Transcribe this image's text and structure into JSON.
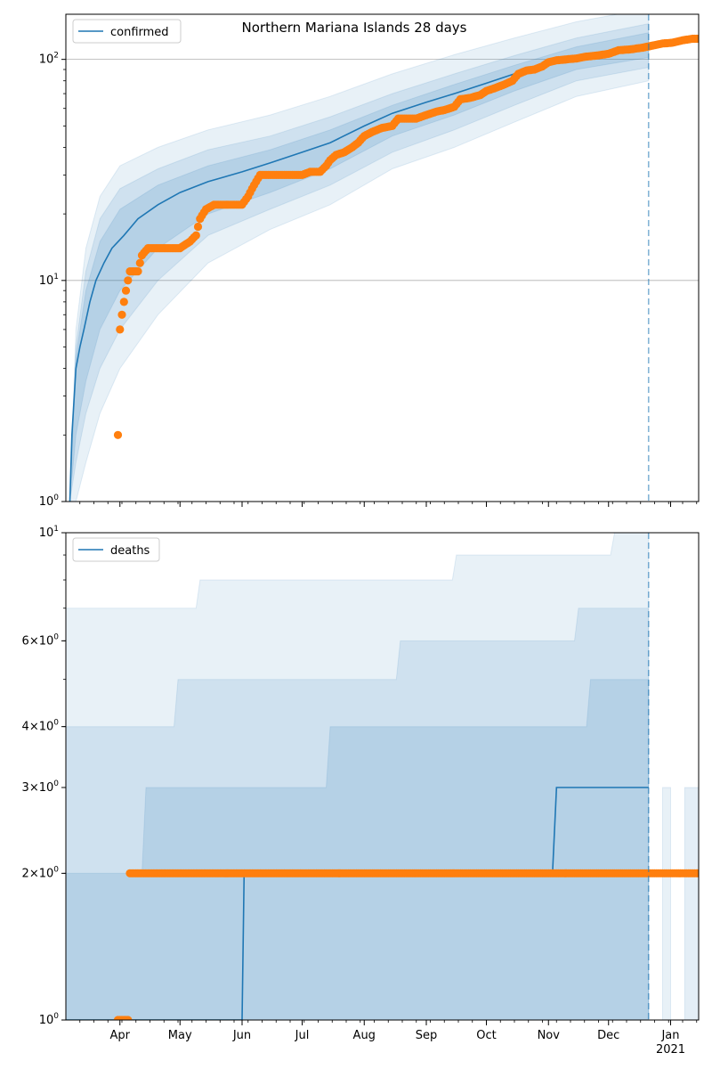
{
  "figure_title": "Northern Mariana Islands 28 days",
  "colors": {
    "model_line": "#1f77b4",
    "observed_points": "#ff7f0e",
    "band": "#1f77b4",
    "forecast_marker": "#1f77b4",
    "grid": "#b0b0b0"
  },
  "x_ticks": [
    {
      "label": "Apr",
      "date": "2020-04-01"
    },
    {
      "label": "May",
      "date": "2020-05-01"
    },
    {
      "label": "Jun",
      "date": "2020-06-01"
    },
    {
      "label": "Jul",
      "date": "2020-07-01"
    },
    {
      "label": "Aug",
      "date": "2020-08-01"
    },
    {
      "label": "Sep",
      "date": "2020-09-01"
    },
    {
      "label": "Oct",
      "date": "2020-10-01"
    },
    {
      "label": "Nov",
      "date": "2020-11-01"
    },
    {
      "label": "Dec",
      "date": "2020-12-01"
    },
    {
      "label": "Jan",
      "date": "2021-01-01"
    }
  ],
  "x_year_label": "2021",
  "chart_data": [
    {
      "type": "line",
      "scale": "log",
      "xlim": [
        "2020-03-05",
        "2021-01-15"
      ],
      "ylim": [
        1,
        160
      ],
      "y_ticks": [
        {
          "value": 1,
          "label": "10",
          "exp": "0"
        },
        {
          "value": 10,
          "label": "10",
          "exp": "1"
        },
        {
          "value": 100,
          "label": "10",
          "exp": "2"
        }
      ],
      "grid": true,
      "legend": {
        "position": "upper-left",
        "entries": [
          "confirmed"
        ]
      },
      "forecast_start": "2020-12-21",
      "series": [
        {
          "name": "confirmed",
          "kind": "model",
          "points": [
            [
              "2020-03-07",
              1
            ],
            [
              "2020-03-08",
              2
            ],
            [
              "2020-03-10",
              4
            ],
            [
              "2020-03-12",
              5
            ],
            [
              "2020-03-14",
              6
            ],
            [
              "2020-03-17",
              8
            ],
            [
              "2020-03-20",
              10
            ],
            [
              "2020-03-24",
              12
            ],
            [
              "2020-03-28",
              14
            ],
            [
              "2020-04-03",
              16
            ],
            [
              "2020-04-10",
              19
            ],
            [
              "2020-04-20",
              22
            ],
            [
              "2020-05-01",
              25
            ],
            [
              "2020-05-15",
              28
            ],
            [
              "2020-06-01",
              31
            ],
            [
              "2020-06-15",
              34
            ],
            [
              "2020-07-01",
              38
            ],
            [
              "2020-07-15",
              42
            ],
            [
              "2020-08-01",
              50
            ],
            [
              "2020-08-15",
              57
            ],
            [
              "2020-09-01",
              64
            ],
            [
              "2020-09-15",
              70
            ],
            [
              "2020-10-01",
              78
            ],
            [
              "2020-10-15",
              86
            ],
            [
              "2020-11-01",
              95
            ],
            [
              "2020-11-15",
              102
            ],
            [
              "2020-12-01",
              108
            ],
            [
              "2020-12-10",
              113
            ],
            [
              "2020-12-21",
              118
            ]
          ]
        },
        {
          "name": "observed",
          "kind": "points",
          "points": [
            [
              "2020-03-31",
              2
            ],
            [
              "2020-04-01",
              6
            ],
            [
              "2020-04-03",
              8
            ],
            [
              "2020-04-06",
              11
            ],
            [
              "2020-04-10",
              11
            ],
            [
              "2020-04-12",
              13
            ],
            [
              "2020-04-15",
              14
            ],
            [
              "2020-04-20",
              14
            ],
            [
              "2020-04-25",
              14
            ],
            [
              "2020-05-01",
              14
            ],
            [
              "2020-05-06",
              15
            ],
            [
              "2020-05-09",
              16
            ],
            [
              "2020-05-11",
              19
            ],
            [
              "2020-05-14",
              21
            ],
            [
              "2020-05-18",
              22
            ],
            [
              "2020-05-25",
              22
            ],
            [
              "2020-06-01",
              22
            ],
            [
              "2020-06-04",
              24
            ],
            [
              "2020-06-06",
              26
            ],
            [
              "2020-06-08",
              28
            ],
            [
              "2020-06-10",
              30
            ],
            [
              "2020-06-20",
              30
            ],
            [
              "2020-07-01",
              30
            ],
            [
              "2020-07-05",
              31
            ],
            [
              "2020-07-10",
              31
            ],
            [
              "2020-07-13",
              33
            ],
            [
              "2020-07-15",
              35
            ],
            [
              "2020-07-18",
              37
            ],
            [
              "2020-07-22",
              38
            ],
            [
              "2020-07-26",
              40
            ],
            [
              "2020-07-29",
              42
            ],
            [
              "2020-08-01",
              45
            ],
            [
              "2020-08-05",
              47
            ],
            [
              "2020-08-10",
              49
            ],
            [
              "2020-08-15",
              50
            ],
            [
              "2020-08-18",
              54
            ],
            [
              "2020-08-22",
              54
            ],
            [
              "2020-08-27",
              54
            ],
            [
              "2020-09-01",
              56
            ],
            [
              "2020-09-06",
              58
            ],
            [
              "2020-09-10",
              59
            ],
            [
              "2020-09-15",
              61
            ],
            [
              "2020-09-18",
              66
            ],
            [
              "2020-09-23",
              67
            ],
            [
              "2020-09-28",
              69
            ],
            [
              "2020-10-01",
              72
            ],
            [
              "2020-10-05",
              74
            ],
            [
              "2020-10-10",
              77
            ],
            [
              "2020-10-14",
              80
            ],
            [
              "2020-10-17",
              86
            ],
            [
              "2020-10-21",
              89
            ],
            [
              "2020-10-25",
              90
            ],
            [
              "2020-10-29",
              93
            ],
            [
              "2020-11-01",
              97
            ],
            [
              "2020-11-05",
              99
            ],
            [
              "2020-11-10",
              100
            ],
            [
              "2020-11-15",
              101
            ],
            [
              "2020-11-20",
              103
            ],
            [
              "2020-11-25",
              104
            ],
            [
              "2020-12-01",
              106
            ],
            [
              "2020-12-06",
              110
            ],
            [
              "2020-12-12",
              111
            ],
            [
              "2020-12-18",
              113
            ],
            [
              "2020-12-24",
              116
            ],
            [
              "2020-12-28",
              118
            ],
            [
              "2021-01-02",
              119
            ],
            [
              "2021-01-07",
              122
            ],
            [
              "2021-01-12",
              124
            ],
            [
              "2021-01-15",
              124
            ]
          ]
        }
      ],
      "bands": [
        {
          "level": "outer",
          "points": [
            [
              "2020-03-07",
              1,
              1
            ],
            [
              "2020-03-10",
              1,
              6
            ],
            [
              "2020-03-15",
              1.5,
              14
            ],
            [
              "2020-03-22",
              2.5,
              24
            ],
            [
              "2020-04-01",
              4,
              33
            ],
            [
              "2020-04-20",
              7,
              40
            ],
            [
              "2020-05-15",
              12,
              48
            ],
            [
              "2020-06-15",
              17,
              56
            ],
            [
              "2020-07-15",
              22,
              68
            ],
            [
              "2020-08-15",
              32,
              86
            ],
            [
              "2020-09-15",
              40,
              105
            ],
            [
              "2020-10-15",
              52,
              125
            ],
            [
              "2020-11-15",
              68,
              148
            ],
            [
              "2020-12-21",
              80,
              170
            ]
          ]
        },
        {
          "level": "middle",
          "points": [
            [
              "2020-03-07",
              1,
              1
            ],
            [
              "2020-03-10",
              1.5,
              5
            ],
            [
              "2020-03-15",
              2.5,
              11
            ],
            [
              "2020-03-22",
              4,
              19
            ],
            [
              "2020-04-01",
              6,
              26
            ],
            [
              "2020-04-20",
              10,
              32
            ],
            [
              "2020-05-15",
              16,
              39
            ],
            [
              "2020-06-15",
              21,
              45
            ],
            [
              "2020-07-15",
              27,
              55
            ],
            [
              "2020-08-15",
              38,
              70
            ],
            [
              "2020-09-15",
              48,
              86
            ],
            [
              "2020-10-15",
              62,
              104
            ],
            [
              "2020-11-15",
              80,
              125
            ],
            [
              "2020-12-21",
              92,
              145
            ]
          ]
        },
        {
          "level": "inner",
          "points": [
            [
              "2020-03-07",
              1,
              1
            ],
            [
              "2020-03-10",
              2,
              4.5
            ],
            [
              "2020-03-15",
              3.5,
              9
            ],
            [
              "2020-03-22",
              6,
              15
            ],
            [
              "2020-04-01",
              9,
              21
            ],
            [
              "2020-04-20",
              14,
              27
            ],
            [
              "2020-05-15",
              20,
              33
            ],
            [
              "2020-06-15",
              25,
              39
            ],
            [
              "2020-07-15",
              32,
              48
            ],
            [
              "2020-08-15",
              45,
              62
            ],
            [
              "2020-09-15",
              56,
              77
            ],
            [
              "2020-10-15",
              72,
              94
            ],
            [
              "2020-11-15",
              90,
              114
            ],
            [
              "2020-12-21",
              102,
              132
            ]
          ]
        }
      ]
    },
    {
      "type": "line",
      "scale": "log",
      "xlim": [
        "2020-03-05",
        "2021-01-15"
      ],
      "ylim": [
        1,
        10
      ],
      "y_ticks": [
        {
          "value": 1,
          "label": "10",
          "exp": "0"
        },
        {
          "value": 2,
          "label": "2×10",
          "exp": "0"
        },
        {
          "value": 3,
          "label": "3×10",
          "exp": "0"
        },
        {
          "value": 4,
          "label": "4×10",
          "exp": "0"
        },
        {
          "value": 6,
          "label": "6×10",
          "exp": "0"
        },
        {
          "value": 10,
          "label": "10",
          "exp": "1"
        }
      ],
      "grid": false,
      "legend": {
        "position": "upper-left",
        "entries": [
          "deaths"
        ]
      },
      "forecast_start": "2020-12-21",
      "series": [
        {
          "name": "deaths",
          "kind": "model",
          "points": [
            [
              "2020-03-05",
              1
            ],
            [
              "2020-06-01",
              1
            ],
            [
              "2020-06-02",
              2
            ],
            [
              "2020-11-03",
              2
            ],
            [
              "2020-11-05",
              3
            ],
            [
              "2020-12-21",
              3
            ]
          ]
        },
        {
          "name": "observed",
          "kind": "points",
          "points": [
            [
              "2020-03-31",
              1
            ],
            [
              "2020-04-01",
              1
            ],
            [
              "2020-04-02",
              1
            ],
            [
              "2020-04-03",
              1
            ],
            [
              "2020-04-04",
              1
            ],
            [
              "2020-04-05",
              1
            ],
            [
              "2020-04-06",
              2
            ],
            [
              "2021-01-15",
              2
            ]
          ]
        }
      ],
      "bands": [
        {
          "level": "outer",
          "points": [
            [
              "2020-03-05",
              1,
              7
            ],
            [
              "2020-05-09",
              1,
              7
            ],
            [
              "2020-05-11",
              1,
              8
            ],
            [
              "2020-09-14",
              1,
              8
            ],
            [
              "2020-09-16",
              1,
              9
            ],
            [
              "2020-12-02",
              1,
              9
            ],
            [
              "2020-12-04",
              1,
              10
            ],
            [
              "2020-12-21",
              1,
              10
            ]
          ]
        },
        {
          "level": "middle",
          "points": [
            [
              "2020-03-05",
              1,
              4
            ],
            [
              "2020-04-28",
              1,
              4
            ],
            [
              "2020-04-30",
              1,
              5
            ],
            [
              "2020-08-17",
              1,
              5
            ],
            [
              "2020-08-19",
              1,
              6
            ],
            [
              "2020-11-14",
              1,
              6
            ],
            [
              "2020-11-16",
              1,
              7
            ],
            [
              "2020-12-21",
              1,
              7
            ]
          ]
        },
        {
          "level": "inner",
          "points": [
            [
              "2020-03-05",
              1,
              2
            ],
            [
              "2020-04-12",
              1,
              2
            ],
            [
              "2020-04-14",
              1,
              3
            ],
            [
              "2020-07-13",
              1,
              3
            ],
            [
              "2020-07-15",
              1,
              4
            ],
            [
              "2020-11-20",
              1,
              4
            ],
            [
              "2020-11-22",
              1,
              5
            ],
            [
              "2020-12-21",
              1,
              5
            ]
          ]
        },
        {
          "level": "tail-a",
          "points": [
            [
              "2020-12-28",
              1,
              3
            ],
            [
              "2021-01-01",
              1,
              3
            ]
          ]
        },
        {
          "level": "tail-b",
          "points": [
            [
              "2021-01-08",
              1,
              3
            ],
            [
              "2021-01-15",
              1,
              3
            ]
          ]
        }
      ]
    }
  ]
}
